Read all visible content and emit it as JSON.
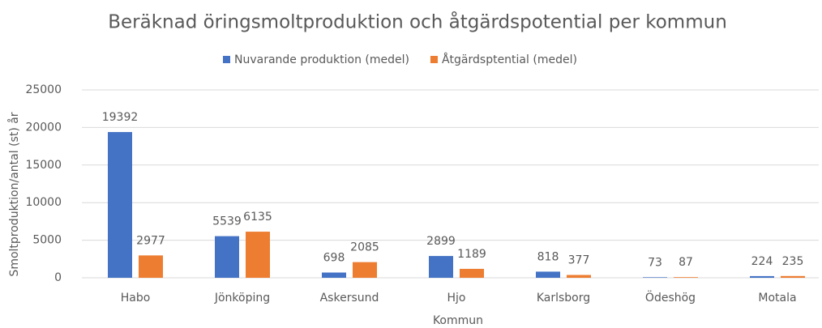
{
  "chart_data": {
    "type": "bar",
    "title": "Beräknad öringsmoltproduktion och åtgärdspotential per kommun",
    "xlabel": "Kommun",
    "ylabel": "Smoltproduktion/antal (st) år",
    "categories": [
      "Habo",
      "Jönköping",
      "Askersund",
      "Hjo",
      "Karlsborg",
      "Ödeshög",
      "Motala"
    ],
    "series": [
      {
        "name": "Nuvarande produktion (medel)",
        "color": "#4472c4",
        "values": [
          19392,
          5539,
          698,
          2899,
          818,
          73,
          224
        ]
      },
      {
        "name": "Åtgärdsptential (medel)",
        "color": "#ed7d31",
        "values": [
          2977,
          6135,
          2085,
          1189,
          377,
          87,
          235
        ]
      }
    ],
    "ylim": [
      0,
      25000
    ],
    "yticks": [
      0,
      5000,
      10000,
      15000,
      20000,
      25000
    ],
    "grid": true,
    "legend": "top"
  }
}
